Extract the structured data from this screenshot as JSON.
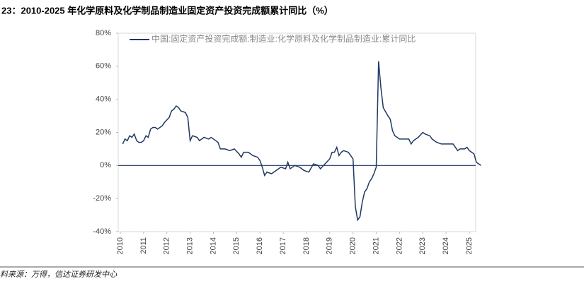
{
  "chart_data": {
    "type": "line",
    "title": "23：2010-2025 年化学原料及化学制品制造业固定资产投资完成额累计同比（%）",
    "source": "料来源：万得，信达证券研发中心",
    "x": [
      2010.1,
      2010.2,
      2010.3,
      2010.4,
      2010.5,
      2010.6,
      2010.7,
      2010.8,
      2010.9,
      2011.0,
      2011.1,
      2011.2,
      2011.3,
      2011.4,
      2011.5,
      2011.6,
      2011.8,
      2011.9,
      2012.1,
      2012.2,
      2012.3,
      2012.4,
      2012.5,
      2012.6,
      2012.8,
      2012.9,
      2013.0,
      2013.1,
      2013.3,
      2013.4,
      2013.6,
      2013.8,
      2013.9,
      2014.1,
      2014.2,
      2014.3,
      2014.5,
      2014.7,
      2014.9,
      2015.1,
      2015.2,
      2015.3,
      2015.5,
      2015.7,
      2015.9,
      2016.0,
      2016.1,
      2016.2,
      2016.3,
      2016.5,
      2016.7,
      2016.9,
      2017.1,
      2017.2,
      2017.3,
      2017.5,
      2017.7,
      2017.9,
      2018.1,
      2018.3,
      2018.5,
      2018.6,
      2018.8,
      2019.0,
      2019.1,
      2019.2,
      2019.3,
      2019.4,
      2019.5,
      2019.6,
      2019.8,
      2019.9,
      2020.0,
      2020.1,
      2020.2,
      2020.3,
      2020.4,
      2020.5,
      2020.6,
      2020.7,
      2020.8,
      2020.9,
      2021.0,
      2021.1,
      2021.2,
      2021.3,
      2021.5,
      2021.6,
      2021.7,
      2021.8,
      2021.9,
      2022.0,
      2022.2,
      2022.4,
      2022.5,
      2022.6,
      2022.8,
      2023.0,
      2023.1,
      2023.3,
      2023.4,
      2023.5,
      2023.6,
      2023.8,
      2024.0,
      2024.2,
      2024.3,
      2024.4,
      2024.5,
      2024.6,
      2024.8,
      2024.9,
      2025.0,
      2025.2,
      2025.3,
      2025.4,
      2025.5
    ],
    "series": [
      {
        "name": "中国:固定资产投资完成额:制造业:化学原料及化学制品制造业:累计同比",
        "color": "#1f3864",
        "values": [
          13,
          16,
          15,
          18,
          17,
          19,
          15,
          14,
          14,
          15,
          18,
          17,
          22,
          23,
          23,
          22,
          24,
          26,
          29,
          33,
          34,
          36,
          35,
          33,
          32,
          29,
          15,
          18,
          17,
          15,
          17,
          16,
          17,
          15,
          14,
          10,
          10,
          9,
          10,
          7,
          5,
          8,
          8,
          6,
          5,
          3,
          -1,
          -6,
          -4,
          -5,
          -3,
          -1,
          -2,
          2,
          -2,
          0,
          -1,
          -3,
          -4,
          1,
          0,
          -2,
          1,
          4,
          8,
          8,
          11,
          6,
          8,
          9,
          8,
          6,
          4,
          -25,
          -33,
          -31,
          -22,
          -16,
          -14,
          -10,
          -8,
          -5,
          -1,
          63,
          47,
          35,
          30,
          28,
          21,
          18,
          17,
          16,
          16,
          16,
          13,
          15,
          17,
          20,
          19,
          18,
          16,
          15,
          14,
          13,
          13,
          13,
          13,
          11,
          9,
          10,
          10,
          11,
          9,
          7,
          2,
          1,
          0
        ]
      }
    ],
    "xlim": [
      2010,
      2025.5
    ],
    "xticks": [
      2010,
      2011,
      2012,
      2013,
      2014,
      2015,
      2016,
      2017,
      2018,
      2019,
      2020,
      2021,
      2022,
      2023,
      2024,
      2025
    ],
    "ylim": [
      -40,
      80
    ],
    "yticks": [
      {
        "value": -40,
        "label": "-40%"
      },
      {
        "value": -20,
        "label": "-20%"
      },
      {
        "value": 0,
        "label": "0%"
      },
      {
        "value": 20,
        "label": "20%"
      },
      {
        "value": 40,
        "label": "40%"
      },
      {
        "value": 60,
        "label": "60%"
      },
      {
        "value": 80,
        "label": "80%"
      }
    ]
  }
}
